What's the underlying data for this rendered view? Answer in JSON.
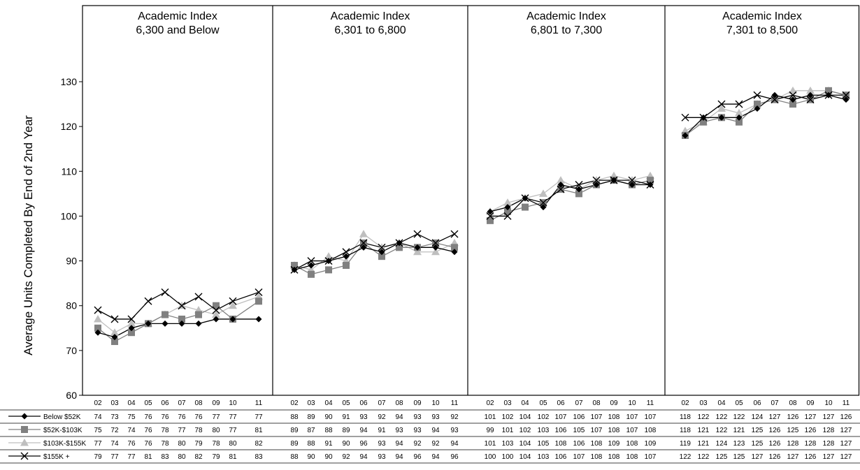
{
  "chart_data": {
    "type": "line",
    "ylabel": "Average Units Completed By End of 2nd Year",
    "ylim": [
      60,
      130
    ],
    "yticks": [
      60,
      70,
      80,
      90,
      100,
      110,
      120,
      130
    ],
    "grid": false,
    "legend_placement": "left of data table",
    "panels": [
      {
        "title": [
          "Academic Index",
          "6,300 and Below"
        ],
        "x": [
          "02",
          "03",
          "04",
          "05",
          "06",
          "07",
          "08",
          "09",
          "10",
          "11"
        ],
        "series": [
          {
            "name": "Below $52K",
            "values": [
              74,
              73,
              75,
              76,
              76,
              76,
              76,
              77,
              77,
              77
            ]
          },
          {
            "name": "$52K-$103K",
            "values": [
              75,
              72,
              74,
              76,
              78,
              77,
              78,
              80,
              77,
              81
            ]
          },
          {
            "name": "$103K-$155K",
            "values": [
              77,
              74,
              76,
              76,
              78,
              80,
              79,
              78,
              80,
              82
            ]
          },
          {
            "name": "$155K +",
            "values": [
              79,
              77,
              77,
              81,
              83,
              80,
              82,
              79,
              81,
              83
            ]
          }
        ]
      },
      {
        "title": [
          "Academic Index",
          "6,301 to 6,800"
        ],
        "x": [
          "02",
          "03",
          "04",
          "05",
          "06",
          "07",
          "08",
          "09",
          "10",
          "11"
        ],
        "series": [
          {
            "name": "Below $52K",
            "values": [
              88,
              89,
              90,
              91,
              93,
              92,
              94,
              93,
              93,
              92
            ]
          },
          {
            "name": "$52K-$103K",
            "values": [
              89,
              87,
              88,
              89,
              94,
              91,
              93,
              93,
              94,
              93
            ]
          },
          {
            "name": "$103K-$155K",
            "values": [
              89,
              88,
              91,
              90,
              96,
              93,
              94,
              92,
              92,
              94
            ]
          },
          {
            "name": "$155K +",
            "values": [
              88,
              90,
              90,
              92,
              94,
              93,
              94,
              96,
              94,
              96
            ]
          }
        ]
      },
      {
        "title": [
          "Academic Index",
          "6,801 to 7,300"
        ],
        "x": [
          "02",
          "03",
          "04",
          "05",
          "06",
          "07",
          "08",
          "09",
          "10",
          "11"
        ],
        "series": [
          {
            "name": "Below $52K",
            "values": [
              101,
              102,
              104,
              102,
              107,
              106,
              107,
              108,
              107,
              107
            ]
          },
          {
            "name": "$52K-$103K",
            "values": [
              99,
              101,
              102,
              103,
              106,
              105,
              107,
              108,
              107,
              108
            ]
          },
          {
            "name": "$103K-$155K",
            "values": [
              101,
              103,
              104,
              105,
              108,
              106,
              108,
              109,
              108,
              109
            ]
          },
          {
            "name": "$155K +",
            "values": [
              100,
              100,
              104,
              103,
              106,
              107,
              108,
              108,
              108,
              107
            ]
          }
        ]
      },
      {
        "title": [
          "Academic Index",
          "7,301 to 8,500"
        ],
        "x": [
          "02",
          "03",
          "04",
          "05",
          "06",
          "07",
          "08",
          "09",
          "10",
          "11"
        ],
        "series": [
          {
            "name": "Below $52K",
            "values": [
              118,
              122,
              122,
              122,
              124,
              127,
              126,
              127,
              127,
              126
            ]
          },
          {
            "name": "$52K-$103K",
            "values": [
              118,
              121,
              122,
              121,
              125,
              126,
              125,
              126,
              128,
              127
            ]
          },
          {
            "name": "$103K-$155K",
            "values": [
              119,
              121,
              124,
              123,
              125,
              126,
              128,
              128,
              128,
              127
            ]
          },
          {
            "name": "$155K +",
            "values": [
              122,
              122,
              125,
              125,
              127,
              126,
              127,
              126,
              127,
              127
            ]
          }
        ]
      }
    ],
    "series_style": [
      {
        "name": "Below $52K",
        "color": "#000000",
        "marker": "diamond"
      },
      {
        "name": "$52K-$103K",
        "color": "#808080",
        "marker": "square"
      },
      {
        "name": "$103K-$155K",
        "color": "#bfbfbf",
        "marker": "triangle"
      },
      {
        "name": "$155K +",
        "color": "#000000",
        "marker": "x"
      }
    ]
  }
}
